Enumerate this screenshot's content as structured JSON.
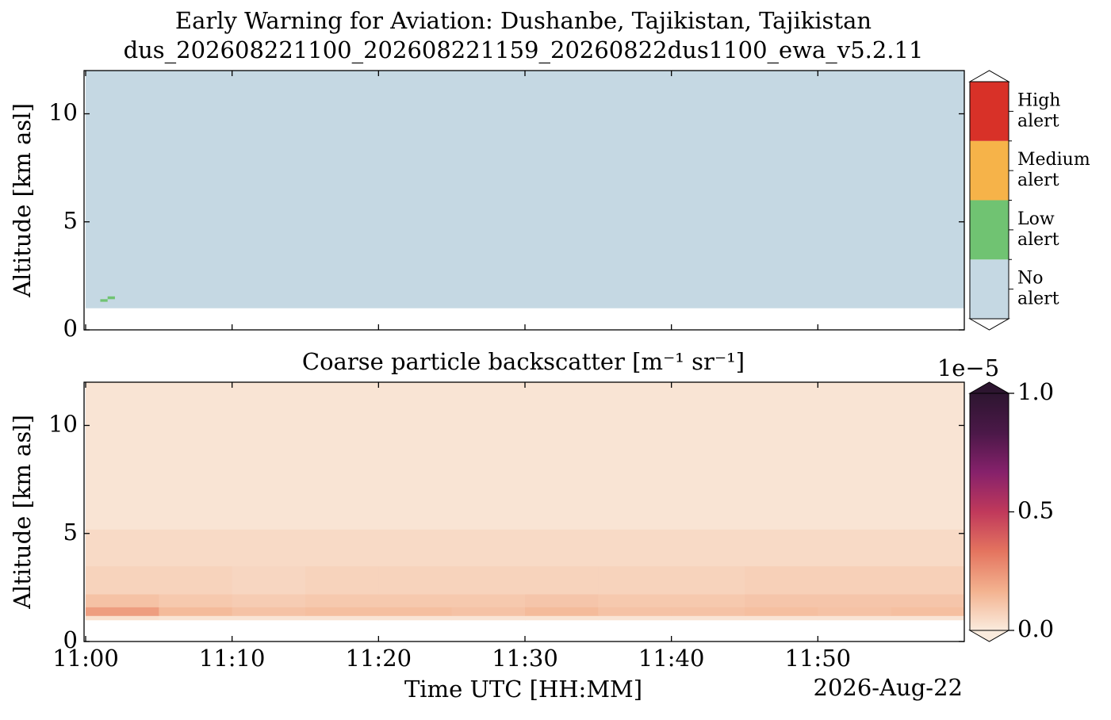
{
  "chart_data": [
    {
      "type": "category-heatmap",
      "title": "Early Warning for Aviation: Dushanbe, Tajikistan, Tajikistan",
      "subtitle": "dus_202608221100_202608221159_20260822dus1100_ewa_v5.2.11",
      "ylabel": "Altitude [km asl]",
      "xlim": [
        "11:00",
        "12:00"
      ],
      "xticks": [
        "11:00",
        "11:10",
        "11:20",
        "11:30",
        "11:40",
        "11:50"
      ],
      "ylim": [
        0,
        12
      ],
      "yticks": [
        0,
        5,
        10
      ],
      "levels": [
        {
          "name": "No alert",
          "color": "#c5d8e3"
        },
        {
          "name": "Low alert",
          "color": "#70c372"
        },
        {
          "name": "Medium alert",
          "color": "#f6b349"
        },
        {
          "name": "High alert",
          "color": "#d83128"
        }
      ],
      "cells": [
        {
          "x": [
            "11:00",
            "12:00"
          ],
          "y": [
            1.0,
            12
          ],
          "level": 0
        },
        {
          "x": [
            "11:01",
            "11:01.5"
          ],
          "y": [
            1.3,
            1.42
          ],
          "level": 1
        },
        {
          "x": [
            "11:01.5",
            "11:02"
          ],
          "y": [
            1.42,
            1.55
          ],
          "level": 1
        }
      ]
    },
    {
      "type": "heatmap",
      "title": "Coarse particle backscatter [m⁻¹ sr⁻¹]",
      "ylabel": "Altitude [km asl]",
      "xlabel": "Time UTC [HH:MM]",
      "date": "2026-Aug-22",
      "xlim": [
        "11:00",
        "12:00"
      ],
      "xticks": [
        "11:00",
        "11:10",
        "11:20",
        "11:30",
        "11:40",
        "11:50"
      ],
      "ylim": [
        0,
        12
      ],
      "yticks": [
        0,
        5,
        10
      ],
      "x_edges": [
        "11:00",
        "11:05",
        "11:10",
        "11:15",
        "11:20",
        "11:25",
        "11:30",
        "11:35",
        "11:40",
        "11:45",
        "11:50",
        "11:55",
        "12:00"
      ],
      "y_edges": [
        1.0,
        1.2,
        1.6,
        2.2,
        3.5,
        5.2,
        12
      ],
      "values": [
        [
          0.03,
          0.02,
          0.02,
          0.02,
          0.02,
          0.02,
          0.02,
          0.02,
          0.02,
          0.02,
          0.02,
          0.02
        ],
        [
          0.22,
          0.14,
          0.12,
          0.13,
          0.13,
          0.12,
          0.14,
          0.12,
          0.12,
          0.13,
          0.12,
          0.13
        ],
        [
          0.12,
          0.1,
          0.09,
          0.1,
          0.1,
          0.1,
          0.11,
          0.1,
          0.1,
          0.11,
          0.11,
          0.11
        ],
        [
          0.07,
          0.07,
          0.06,
          0.07,
          0.07,
          0.07,
          0.07,
          0.07,
          0.07,
          0.08,
          0.08,
          0.08
        ],
        [
          0.05,
          0.05,
          0.05,
          0.05,
          0.05,
          0.05,
          0.05,
          0.05,
          0.05,
          0.05,
          0.05,
          0.05
        ],
        [
          0.02,
          0.02,
          0.02,
          0.02,
          0.02,
          0.02,
          0.02,
          0.02,
          0.02,
          0.02,
          0.02,
          0.02
        ]
      ],
      "clim": [
        0,
        1
      ],
      "cbar_multiplier": "1e−5",
      "cbar_ticks": [
        {
          "value": 0,
          "label": "0.0"
        },
        0.5,
        {
          "value": 1,
          "label": "1.0"
        }
      ],
      "colormap": [
        "#faebdd",
        "#f3b28f",
        "#e4745f",
        "#c0395b",
        "#86216b",
        "#4b1848",
        "#2d1530"
      ],
      "background": "#f4f4f4"
    }
  ]
}
